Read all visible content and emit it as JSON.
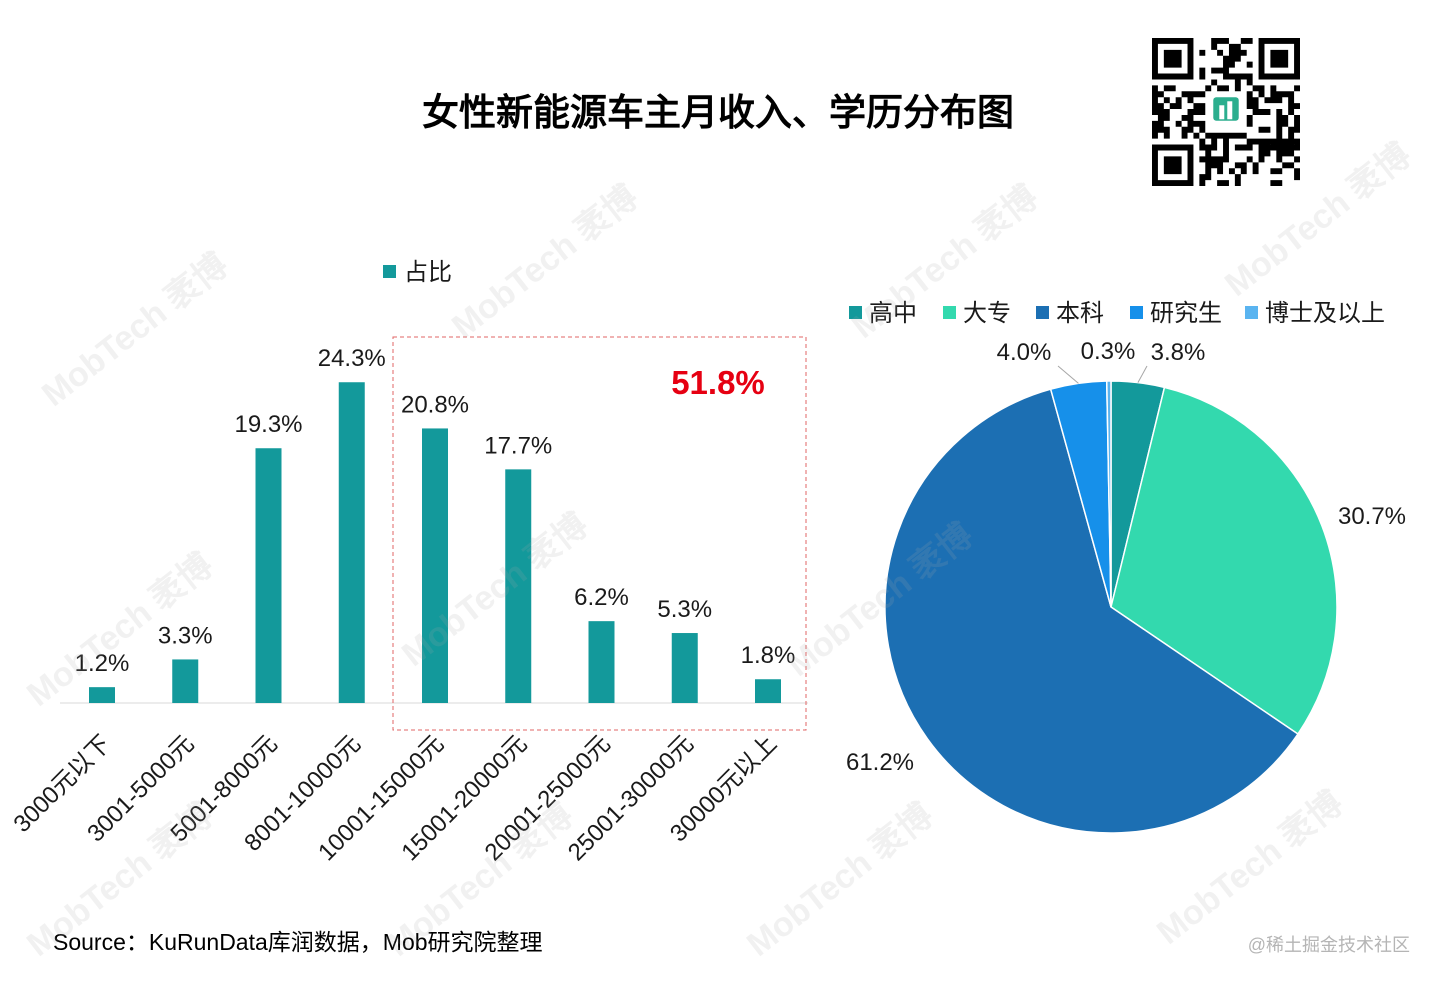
{
  "title": "女性新能源车主月收入、学历分布图",
  "watermark": "MobTech 袤博",
  "source": "Source：KuRunData库润数据，Mob研究院整理",
  "credit": "@稀土掘金技术社区",
  "colors": {
    "title": "#000000",
    "highlight": "#E60012",
    "highlight_box": "#E06666",
    "axis": "#D9D9D9",
    "leader_line": "#A6A6A6",
    "qr_logo": "#2BAE8E"
  },
  "chart_data": [
    {
      "type": "bar",
      "legend": {
        "position": "top"
      },
      "categories": [
        "3000元以下",
        "3001-5000元",
        "5001-8000元",
        "8001-10000元",
        "10001-15000元",
        "15001-20000元",
        "20001-25000元",
        "25001-30000元",
        "30000元以上"
      ],
      "series": [
        {
          "name": "占比",
          "values": [
            1.2,
            3.3,
            19.3,
            24.3,
            20.8,
            17.7,
            6.2,
            5.3,
            1.8
          ],
          "color": "#13999B"
        }
      ],
      "data_labels": [
        "1.2%",
        "3.3%",
        "19.3%",
        "24.3%",
        "20.8%",
        "17.7%",
        "6.2%",
        "5.3%",
        "1.8%"
      ],
      "ylim": [
        0,
        25
      ],
      "grid": false,
      "highlight": {
        "category_index_range": [
          4,
          8
        ],
        "label": "51.8%"
      }
    },
    {
      "type": "pie",
      "legend": {
        "position": "top"
      },
      "categories": [
        "高中",
        "大专",
        "本科",
        "研究生",
        "博士及以上"
      ],
      "values": [
        3.8,
        30.7,
        61.2,
        4.0,
        0.3
      ],
      "data_labels": [
        "3.8%",
        "30.7%",
        "61.2%",
        "4.0%",
        "0.3%"
      ],
      "colors": [
        "#13999B",
        "#33D9AE",
        "#1C6FB3",
        "#1690EA",
        "#5AB4F0"
      ],
      "start_angle": 0
    }
  ]
}
